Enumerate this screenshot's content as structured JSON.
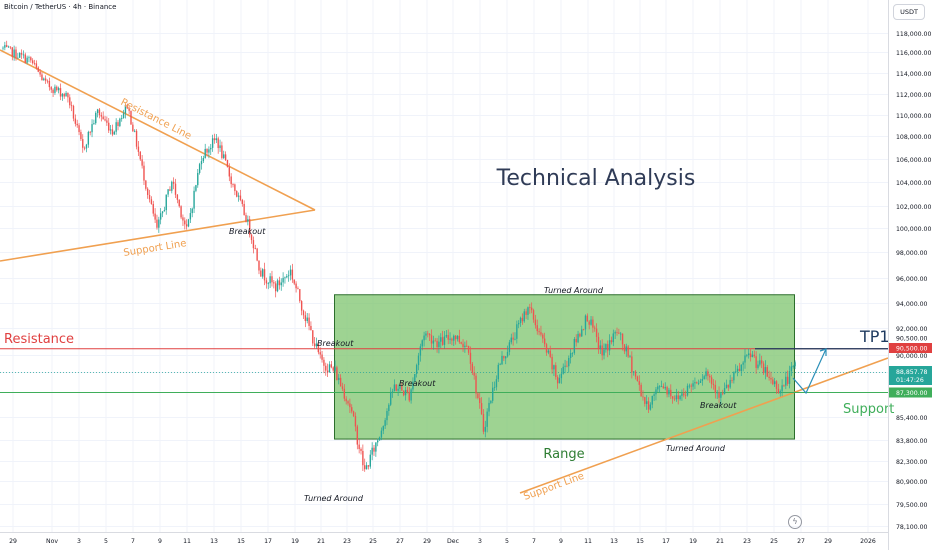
{
  "header": {
    "symbol": "Bitcoin / TetherUS · 4h · Binance",
    "currency_button": "USDT"
  },
  "colors": {
    "candle_up": "#26a69a",
    "candle_down": "#ef5350",
    "resistance": "#e04040",
    "support": "#3fae5a",
    "trendline": "#f0a050",
    "range_fill": "#7dc46d",
    "range_border": "#2c6e2c",
    "arrow": "#2a8fb8",
    "title": "#2f3b56"
  },
  "chart_data": {
    "type": "candlestick",
    "ylim": [
      77000,
      119500
    ],
    "y_ticks": [
      "118,000.00",
      "116,000.00",
      "114,000.00",
      "112,000.00",
      "110,000.00",
      "108,000.00",
      "106,000.00",
      "104,000.00",
      "102,000.00",
      "100,000.00",
      "98,000.00",
      "96,000.00",
      "94,000.00",
      "92,000.00",
      "90,000.00",
      "88,857.78",
      "87,300.00",
      "85,400.00",
      "83,800.00",
      "82,300.00",
      "80,900.00",
      "79,500.00",
      "78,100.00"
    ],
    "x_ticks": [
      "29",
      "Nov",
      "3",
      "5",
      "7",
      "9",
      "11",
      "13",
      "15",
      "17",
      "19",
      "21",
      "23",
      "25",
      "27",
      "29",
      "Dec",
      "3",
      "5",
      "7",
      "9",
      "11",
      "13",
      "15",
      "17",
      "19",
      "21",
      "23",
      "25",
      "27",
      "29",
      "2026"
    ],
    "price_tags": {
      "resistance": "90,500.00",
      "last_price": "88,857.78",
      "countdown": "01:47:26",
      "support": "87,300.00"
    },
    "levels": {
      "resistance": 90500,
      "support": 87300,
      "tp1": 90500
    },
    "range_box": {
      "top": 94700,
      "bottom": 83900
    },
    "path": [
      [
        0,
        116500
      ],
      [
        4,
        115200
      ],
      [
        6,
        113000
      ],
      [
        9,
        111800
      ],
      [
        11,
        106800
      ],
      [
        13,
        110400
      ],
      [
        15,
        108500
      ],
      [
        17,
        111000
      ],
      [
        19,
        105200
      ],
      [
        21,
        99900
      ],
      [
        23,
        104200
      ],
      [
        25,
        99800
      ],
      [
        27,
        106300
      ],
      [
        29,
        107800
      ],
      [
        31,
        104200
      ],
      [
        33,
        101000
      ],
      [
        35,
        96500
      ],
      [
        37,
        95300
      ],
      [
        39,
        96600
      ],
      [
        41,
        92900
      ],
      [
        43,
        89700
      ],
      [
        45,
        88900
      ],
      [
        47,
        86300
      ],
      [
        49,
        81600
      ],
      [
        51,
        84200
      ],
      [
        53,
        87800
      ],
      [
        55,
        87100
      ],
      [
        57,
        91700
      ],
      [
        59,
        90900
      ],
      [
        61,
        91500
      ],
      [
        63,
        90600
      ],
      [
        65,
        84600
      ],
      [
        67,
        89200
      ],
      [
        69,
        91300
      ],
      [
        71,
        93800
      ],
      [
        73,
        91000
      ],
      [
        75,
        88200
      ],
      [
        77,
        90500
      ],
      [
        79,
        93000
      ],
      [
        81,
        90100
      ],
      [
        83,
        91800
      ],
      [
        85,
        89300
      ],
      [
        87,
        86200
      ],
      [
        89,
        88000
      ],
      [
        91,
        86800
      ],
      [
        93,
        87900
      ],
      [
        95,
        88900
      ],
      [
        97,
        87000
      ],
      [
        99,
        88700
      ],
      [
        101,
        90100
      ],
      [
        103,
        88800
      ],
      [
        105,
        87500
      ],
      [
        107,
        89300
      ]
    ],
    "annotations": {
      "title": "Technical Analysis",
      "resistance_label": "Resistance",
      "support_label": "Support",
      "tp_label": "TP1",
      "range_label": "Range",
      "resistance_line_label": "Resistance Line",
      "support_line_label": "Support Line",
      "support_line_label_2": "Support Line",
      "breakout_1": "Breakout",
      "breakout_2": "Breakout",
      "breakout_3": "Breakout",
      "breakout_4": "Breakout",
      "turned_around_1": "Turned Around",
      "turned_around_2": "Turned Around",
      "turned_around_3": "Turned Around"
    }
  }
}
